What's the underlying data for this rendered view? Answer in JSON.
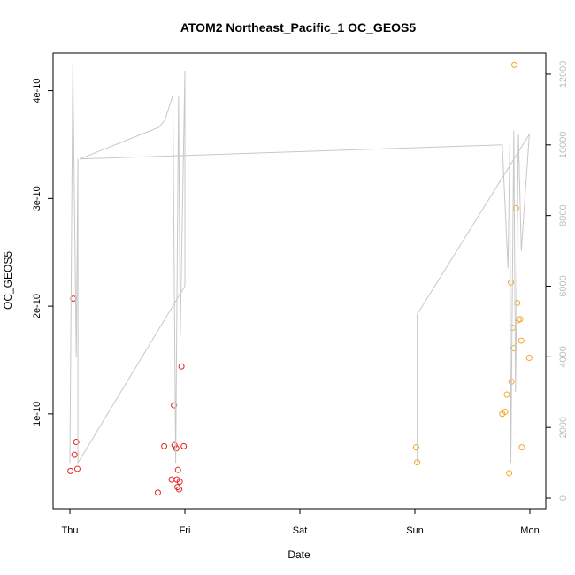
{
  "chart_data": {
    "type": "scatter",
    "title": "ATOM2 Northeast_Pacific_1 OC_GEOS5",
    "xlabel": "Date",
    "ylabel": "OC_GEOS5",
    "y2label": "",
    "grid": false,
    "x_ticks": [
      "Thu",
      "Fri",
      "Sat",
      "Sun",
      "Mon"
    ],
    "xlim": [
      0,
      4.0
    ],
    "y_ticks": [
      "1e-10",
      "2e-10",
      "3e-10",
      "4e-10"
    ],
    "y_tick_values": [
      1e-10,
      2e-10,
      3e-10,
      4e-10
    ],
    "ylim": [
      1.2e-11,
      4.35e-10
    ],
    "y2_ticks": [
      "0",
      "2000",
      "4000",
      "6000",
      "8000",
      "10000",
      "12000"
    ],
    "y2_tick_values": [
      0,
      2000,
      4000,
      6000,
      8000,
      10000,
      12000
    ],
    "y2lim": [
      -300,
      12600
    ],
    "series": [
      {
        "color": "#e8231f",
        "marker": "open-circle",
        "points": [
          [
            0.005,
            4.7e-11
          ],
          [
            0.03,
            2.07e-10
          ],
          [
            0.04,
            6.2e-11
          ],
          [
            0.055,
            7.4e-11
          ],
          [
            0.065,
            4.9e-11
          ],
          [
            0.765,
            2.7e-11
          ],
          [
            0.82,
            7e-11
          ],
          [
            0.885,
            3.9e-11
          ],
          [
            0.905,
            1.08e-10
          ],
          [
            0.91,
            7.1e-11
          ],
          [
            0.925,
            6.8e-11
          ],
          [
            0.93,
            3.9e-11
          ],
          [
            0.935,
            3.2e-11
          ],
          [
            0.94,
            4.8e-11
          ],
          [
            0.95,
            3e-11
          ],
          [
            0.955,
            3.7e-11
          ],
          [
            0.97,
            1.44e-10
          ],
          [
            0.99,
            7e-11
          ]
        ]
      },
      {
        "color": "#f5a623",
        "marker": "open-circle",
        "points": [
          [
            3.01,
            6.9e-11
          ],
          [
            3.02,
            5.5e-11
          ],
          [
            3.76,
            1e-10
          ],
          [
            3.785,
            1.02e-10
          ],
          [
            3.8,
            1.18e-10
          ],
          [
            3.82,
            4.5e-11
          ],
          [
            3.835,
            2.22e-10
          ],
          [
            3.84,
            1.3e-10
          ],
          [
            3.85,
            1.8e-10
          ],
          [
            3.86,
            1.61e-10
          ],
          [
            3.865,
            4.24e-10
          ],
          [
            3.88,
            2.91e-10
          ],
          [
            3.89,
            2.03e-10
          ],
          [
            3.9,
            1.87e-10
          ],
          [
            3.915,
            1.88e-10
          ],
          [
            3.925,
            1.68e-10
          ],
          [
            3.93,
            6.9e-11
          ],
          [
            3.995,
            1.52e-10
          ]
        ]
      },
      {
        "color": "#c8c8c8",
        "marker": "line",
        "axis": "right",
        "points": [
          [
            0.0,
            1000
          ],
          [
            0.025,
            12300
          ],
          [
            0.055,
            4000
          ],
          [
            0.07,
            9600
          ],
          [
            0.07,
            1000
          ],
          [
            1.0,
            6000
          ],
          [
            1.0,
            12100
          ],
          [
            0.96,
            4600
          ],
          [
            0.945,
            11400
          ],
          [
            0.92,
            1000
          ],
          [
            0.895,
            11400
          ],
          [
            0.825,
            10700
          ],
          [
            0.775,
            10500
          ],
          [
            0.085,
            9600
          ],
          [
            3.76,
            10000
          ],
          [
            3.81,
            6500
          ],
          [
            3.825,
            10000
          ],
          [
            3.835,
            1000
          ],
          [
            3.86,
            10400
          ],
          [
            3.875,
            3000
          ],
          [
            3.9,
            10300
          ],
          [
            3.925,
            7000
          ],
          [
            3.995,
            10300
          ],
          [
            3.02,
            5200
          ],
          [
            3.02,
            1000
          ]
        ]
      }
    ]
  }
}
